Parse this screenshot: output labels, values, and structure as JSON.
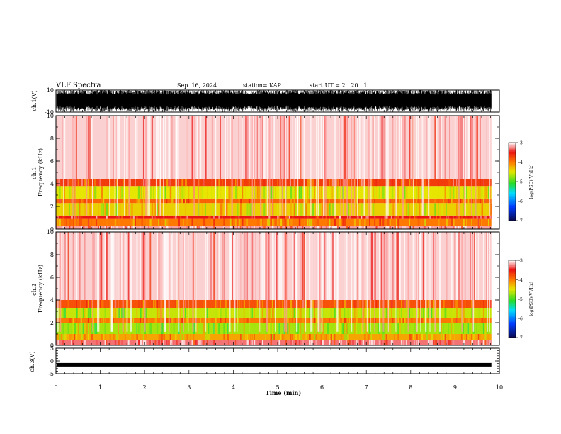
{
  "header": {
    "title": "VLF Spectra",
    "date": "Sep. 16, 2024",
    "station": "station= KAP",
    "start": "start  UT =   2 : 20 : 1"
  },
  "chart_data": [
    {
      "type": "line",
      "panel": "ch1-waveform",
      "ylabel": "ch.1(V)",
      "ylim": [
        -10,
        10
      ],
      "yticks": [
        "10",
        "-10"
      ],
      "note": "dense oscillating waveform saturating near full scale"
    },
    {
      "type": "heatmap",
      "panel": "ch1-spectrogram",
      "ylabel": "ch.1\nFrequency  (kHz)",
      "ylim": [
        0,
        10
      ],
      "yticks": [
        "0",
        "2",
        "4",
        "6",
        "8",
        "10"
      ],
      "colorbar": {
        "label": "log(PSD)(V²/Hz)",
        "range": [
          -7,
          -3
        ],
        "ticks": [
          "-3",
          "-4",
          "-5",
          "-6",
          "-7"
        ]
      },
      "bands": [
        {
          "kHz": [
            0.0,
            0.3
          ],
          "level": -3.2
        },
        {
          "kHz": [
            0.3,
            0.9
          ],
          "level": -4.0
        },
        {
          "kHz": [
            0.9,
            1.2
          ],
          "level": -3.5
        },
        {
          "kHz": [
            1.2,
            2.3
          ],
          "level": -4.4
        },
        {
          "kHz": [
            2.3,
            2.7
          ],
          "level": -3.9
        },
        {
          "kHz": [
            2.7,
            3.8
          ],
          "level": -4.5
        },
        {
          "kHz": [
            3.8,
            4.4
          ],
          "level": -3.7
        },
        {
          "kHz": [
            4.4,
            10.0
          ],
          "level": -3.1
        }
      ]
    },
    {
      "type": "heatmap",
      "panel": "ch2-spectrogram",
      "ylabel": "ch.2\nFrequency  (kHz)",
      "ylim": [
        0,
        10
      ],
      "yticks": [
        "0",
        "2",
        "4",
        "6",
        "8",
        "10"
      ],
      "colorbar": {
        "label": "log(PSD)(V²/Hz)",
        "range": [
          -7,
          -3
        ],
        "ticks": [
          "-3",
          "-4",
          "-5",
          "-6",
          "-7"
        ]
      },
      "bands": [
        {
          "kHz": [
            0.0,
            0.5
          ],
          "level": -3.3
        },
        {
          "kHz": [
            0.5,
            1.0
          ],
          "level": -4.2
        },
        {
          "kHz": [
            1.0,
            2.0
          ],
          "level": -4.7
        },
        {
          "kHz": [
            2.0,
            2.4
          ],
          "level": -4.0
        },
        {
          "kHz": [
            2.4,
            3.3
          ],
          "level": -4.6
        },
        {
          "kHz": [
            3.3,
            4.0
          ],
          "level": -3.8
        },
        {
          "kHz": [
            4.0,
            10.0
          ],
          "level": -3.1
        }
      ]
    },
    {
      "type": "line",
      "panel": "ch3-waveform",
      "ylabel": "ch.3(V)",
      "ylim": [
        -5,
        5
      ],
      "yticks": [
        "5",
        "0",
        "-5"
      ],
      "level": -1.5,
      "note": "flat band near -1.5 V"
    }
  ],
  "xaxis": {
    "label": "Time  (min)",
    "range": [
      0,
      10
    ],
    "data_end": 9.82,
    "ticks": [
      "0",
      "1",
      "2",
      "3",
      "4",
      "5",
      "6",
      "7",
      "8",
      "9",
      "10"
    ]
  }
}
